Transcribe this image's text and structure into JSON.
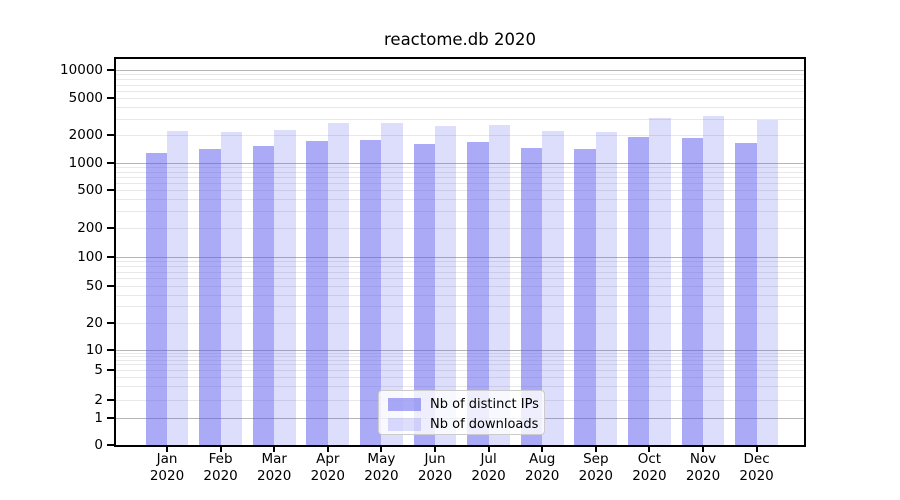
{
  "title": "reactome.db 2020",
  "colors": {
    "series_base": "#5555ee",
    "ips_alpha": 0.5,
    "downloads_alpha": 0.2,
    "grid_major": "#b5b5b5",
    "grid_minor": "#e8e8e8",
    "spine": "#000000",
    "background": "#ffffff",
    "text": "#000000",
    "legend_border": "#cccccc"
  },
  "y_axis": {
    "tick_labels": [
      "0",
      "1",
      "2",
      "5",
      "10",
      "20",
      "50",
      "100",
      "200",
      "500",
      "1000",
      "2000",
      "5000",
      "10000"
    ]
  },
  "x_axis": {
    "year": "2020",
    "months": [
      "Jan",
      "Feb",
      "Mar",
      "Apr",
      "May",
      "Jun",
      "Jul",
      "Aug",
      "Sep",
      "Oct",
      "Nov",
      "Dec"
    ]
  },
  "legend": {
    "items": [
      {
        "label": "Nb of distinct IPs",
        "series": "ips"
      },
      {
        "label": "Nb of downloads",
        "series": "downloads"
      }
    ]
  },
  "chart_data": {
    "type": "bar",
    "title": "reactome.db 2020",
    "categories": [
      "Jan 2020",
      "Feb 2020",
      "Mar 2020",
      "Apr 2020",
      "May 2020",
      "Jun 2020",
      "Jul 2020",
      "Aug 2020",
      "Sep 2020",
      "Oct 2020",
      "Nov 2020",
      "Dec 2020"
    ],
    "series": [
      {
        "name": "Nb of distinct IPs",
        "values": [
          1300,
          1410,
          1530,
          1730,
          1780,
          1620,
          1680,
          1450,
          1410,
          1900,
          1850,
          1640
        ]
      },
      {
        "name": "Nb of downloads",
        "values": [
          2200,
          2160,
          2290,
          2720,
          2700,
          2500,
          2550,
          2230,
          2180,
          3060,
          3220,
          2880
        ]
      }
    ],
    "yscale": "symlog",
    "yticks": [
      0,
      1,
      2,
      5,
      10,
      20,
      50,
      100,
      200,
      500,
      1000,
      2000,
      5000,
      10000
    ],
    "ylim": [
      0,
      13000
    ],
    "grid": true,
    "legend_position": "lower center"
  }
}
